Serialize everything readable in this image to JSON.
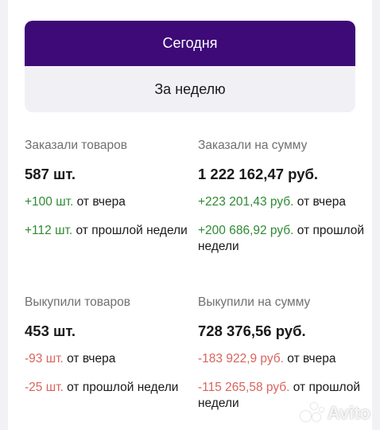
{
  "tabs": {
    "today": "Сегодня",
    "week": "За неделю"
  },
  "stats": {
    "ordered_goods": {
      "label": "Заказали товаров",
      "value": "587 шт.",
      "vs_yesterday": {
        "amount": "+100 шт.",
        "text": " от вчера"
      },
      "vs_last_week": {
        "amount": "+112 шт.",
        "text": " от прошлой недели"
      }
    },
    "ordered_sum": {
      "label": "Заказали на сумму",
      "value": "1 222 162,47 руб.",
      "vs_yesterday": {
        "amount": "+223 201,43 руб.",
        "text": " от вчера"
      },
      "vs_last_week": {
        "amount": "+200 686,92 руб.",
        "text": " от прошлой недели"
      }
    },
    "bought_goods": {
      "label": "Выкупили товаров",
      "value": "453 шт.",
      "vs_yesterday": {
        "amount": "-93 шт.",
        "text": " от вчера"
      },
      "vs_last_week": {
        "amount": "-25 шт.",
        "text": " от прошлой недели"
      }
    },
    "bought_sum": {
      "label": "Выкупили на сумму",
      "value": "728 376,56 руб.",
      "vs_yesterday": {
        "amount": "-183 922,9 руб.",
        "text": " от вчера"
      },
      "vs_last_week": {
        "amount": "-115 265,58 руб.",
        "text": " от прошлой недели"
      }
    }
  },
  "watermark": {
    "text": "Avito",
    "icon": "avito-logo-icon"
  },
  "colors": {
    "accent": "#3d0a77",
    "positive": "#2f8a33",
    "negative": "#d9645c"
  }
}
